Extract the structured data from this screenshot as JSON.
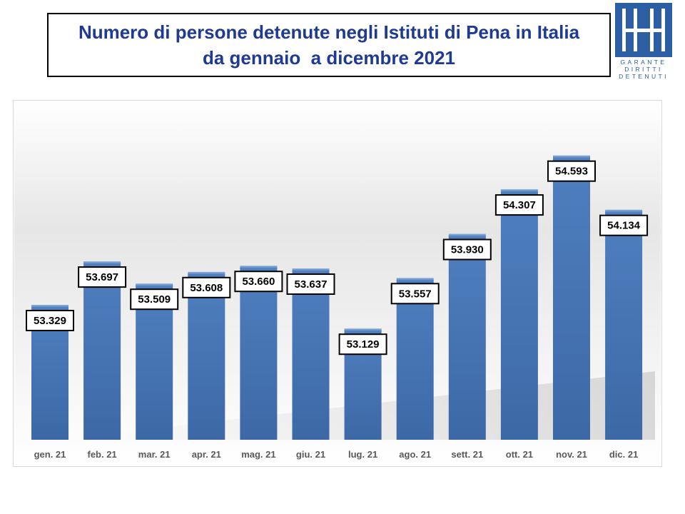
{
  "title": {
    "line1": "Numero di persone detenute negli Istituti di Pena in Italia",
    "line2": "da gennaio  a dicembre 2021"
  },
  "logo": {
    "lines": [
      "GARANTE",
      "DIRITTI",
      "DETENUTI"
    ]
  },
  "colors": {
    "title": "#1f3a93",
    "bar": "#4a78b5",
    "bar_dark": "#3a64a0",
    "logo": "#2b5ea3"
  },
  "chart_data": {
    "type": "bar",
    "categories": [
      "gen. 21",
      "feb. 21",
      "mar. 21",
      "apr. 21",
      "mag. 21",
      "giu. 21",
      "lug. 21",
      "ago. 21",
      "sett. 21",
      "ott. 21",
      "nov. 21",
      "dic. 21"
    ],
    "values": [
      53329,
      53697,
      53509,
      53608,
      53660,
      53637,
      53129,
      53557,
      53930,
      54307,
      54593,
      54134
    ],
    "value_labels": [
      "53.329",
      "53.697",
      "53.509",
      "53.608",
      "53.660",
      "53.637",
      "53.129",
      "53.557",
      "53.930",
      "54.307",
      "54.593",
      "54.134"
    ],
    "title": "",
    "xlabel": "",
    "ylabel": "",
    "ylim": [
      52200,
      54700
    ],
    "grid": false,
    "legend": "none"
  }
}
